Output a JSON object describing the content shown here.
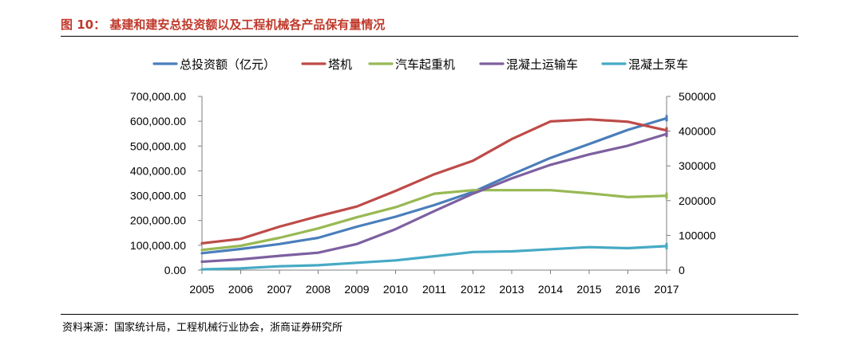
{
  "header": {
    "figure_title": "图 10：    基建和建安总投资额以及工程机械各产品保有量情况"
  },
  "footer": {
    "source": "资料来源：国家统计局，工程机械行业协会，浙商证券研究所"
  },
  "chart_data": {
    "type": "line",
    "title": "基建和建安总投资额以及工程机械各产品保有量情况",
    "x": [
      "2005",
      "2006",
      "2007",
      "2008",
      "2009",
      "2010",
      "2011",
      "2012",
      "2013",
      "2014",
      "2015",
      "2016",
      "2017"
    ],
    "y_left": {
      "min": 0,
      "max": 700000,
      "ticks": [
        "0.00",
        "100,000.00",
        "200,000.00",
        "300,000.00",
        "400,000.00",
        "500,000.00",
        "600,000.00",
        "700,000.00"
      ],
      "tick_values": [
        0,
        100000,
        200000,
        300000,
        400000,
        500000,
        600000,
        700000
      ]
    },
    "y_right": {
      "min": 0,
      "max": 500000,
      "ticks": [
        "0",
        "100000",
        "200000",
        "300000",
        "400000",
        "500000"
      ],
      "tick_values": [
        0,
        100000,
        200000,
        300000,
        400000,
        500000
      ]
    },
    "legend_position": "top",
    "series": [
      {
        "name": "总投资额（亿元）",
        "axis": "left",
        "color": "#4a7ebb",
        "values": [
          68000,
          85000,
          105000,
          130000,
          175000,
          215000,
          262000,
          315000,
          385000,
          452000,
          508000,
          565000,
          612000
        ]
      },
      {
        "name": "塔机",
        "axis": "right",
        "color": "#be4b48",
        "values": [
          77000,
          90000,
          125000,
          155000,
          183000,
          228000,
          276000,
          315000,
          377000,
          428000,
          434000,
          427000,
          402000
        ]
      },
      {
        "name": "汽车起重机",
        "axis": "right",
        "color": "#98b954",
        "values": [
          58000,
          70000,
          93000,
          120000,
          152000,
          181000,
          220000,
          230000,
          230000,
          230000,
          221000,
          210000,
          214000
        ]
      },
      {
        "name": "混凝土运输车",
        "axis": "right",
        "color": "#7d60a0",
        "values": [
          24000,
          31000,
          41000,
          50000,
          75000,
          118000,
          170000,
          220000,
          264000,
          303000,
          333000,
          358000,
          392000
        ]
      },
      {
        "name": "混凝土泵车",
        "axis": "right",
        "color": "#46aac5",
        "values": [
          2000,
          5000,
          11000,
          14000,
          21000,
          28000,
          40000,
          52000,
          54000,
          60000,
          66000,
          63000,
          69000
        ]
      }
    ]
  }
}
